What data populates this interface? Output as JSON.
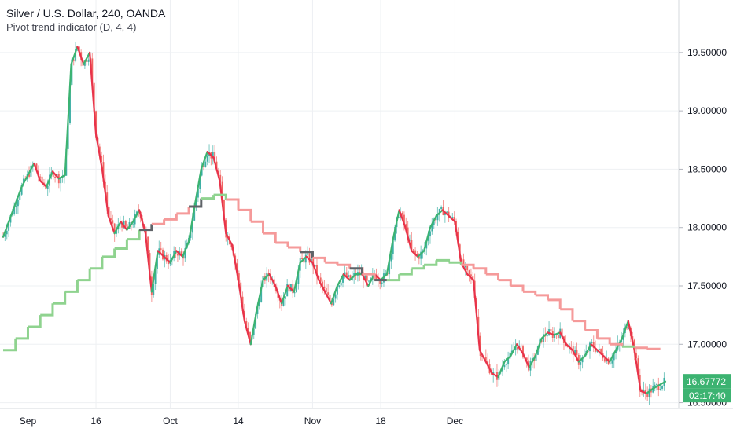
{
  "legend": {
    "title": "Silver / U.S. Dollar, 240, OANDA",
    "indicator": "Pivot trend indicator (D, 4, 4)"
  },
  "colors": {
    "up": "#26a69a",
    "down": "#ef5350",
    "trend_up": "#3cb371",
    "trend_down": "#e8334a",
    "pivot_bull": "#8fd38f",
    "pivot_bear": "#f59a9a",
    "pivot_neutral": "#5f6368",
    "tag": "#3cb371",
    "grid": "#eef0f3"
  },
  "chart_data": {
    "type": "line",
    "series": [
      {
        "role": "price",
        "points": [
          [
            0,
            17.92
          ],
          [
            3,
            18.35
          ],
          [
            5,
            18.55
          ],
          [
            6,
            18.4
          ],
          [
            7,
            18.35
          ],
          [
            8,
            18.48
          ],
          [
            9,
            18.42
          ],
          [
            10,
            18.45
          ],
          [
            11,
            19.4
          ],
          [
            12,
            19.55
          ],
          [
            13,
            19.4
          ],
          [
            14,
            19.5
          ],
          [
            15,
            18.8
          ],
          [
            16,
            18.5
          ],
          [
            17,
            18.1
          ],
          [
            18,
            17.95
          ],
          [
            19,
            18.05
          ],
          [
            20,
            17.98
          ],
          [
            21,
            18.05
          ],
          [
            22,
            18.15
          ],
          [
            23,
            17.95
          ],
          [
            24,
            17.45
          ],
          [
            25,
            17.8
          ],
          [
            26,
            17.75
          ],
          [
            27,
            17.7
          ],
          [
            28,
            17.8
          ],
          [
            29,
            17.75
          ],
          [
            30,
            17.88
          ],
          [
            31,
            18.2
          ],
          [
            32,
            18.5
          ],
          [
            33,
            18.65
          ],
          [
            34,
            18.6
          ],
          [
            35,
            18.4
          ],
          [
            36,
            17.95
          ],
          [
            37,
            17.85
          ],
          [
            38,
            17.55
          ],
          [
            39,
            17.2
          ],
          [
            40,
            17.0
          ],
          [
            41,
            17.3
          ],
          [
            42,
            17.55
          ],
          [
            43,
            17.6
          ],
          [
            44,
            17.5
          ],
          [
            45,
            17.35
          ],
          [
            46,
            17.5
          ],
          [
            47,
            17.45
          ],
          [
            48,
            17.7
          ],
          [
            49,
            17.75
          ],
          [
            50,
            17.7
          ],
          [
            51,
            17.55
          ],
          [
            52,
            17.45
          ],
          [
            53,
            17.35
          ],
          [
            54,
            17.5
          ],
          [
            55,
            17.6
          ],
          [
            56,
            17.55
          ],
          [
            57,
            17.6
          ],
          [
            58,
            17.6
          ],
          [
            59,
            17.5
          ],
          [
            60,
            17.6
          ],
          [
            61,
            17.55
          ],
          [
            62,
            17.6
          ],
          [
            63,
            17.9
          ],
          [
            64,
            18.15
          ],
          [
            65,
            18.0
          ],
          [
            66,
            17.8
          ],
          [
            67,
            17.75
          ],
          [
            68,
            17.8
          ],
          [
            69,
            18.0
          ],
          [
            70,
            18.1
          ],
          [
            71,
            18.15
          ],
          [
            72,
            18.1
          ],
          [
            73,
            18.05
          ],
          [
            74,
            17.7
          ],
          [
            75,
            17.6
          ],
          [
            76,
            17.55
          ],
          [
            77,
            16.95
          ],
          [
            78,
            16.85
          ],
          [
            79,
            16.75
          ],
          [
            80,
            16.72
          ],
          [
            81,
            16.85
          ],
          [
            82,
            16.9
          ],
          [
            83,
            17.0
          ],
          [
            84,
            16.92
          ],
          [
            85,
            16.8
          ],
          [
            86,
            16.9
          ],
          [
            87,
            17.05
          ],
          [
            88,
            17.1
          ],
          [
            89,
            17.08
          ],
          [
            90,
            17.1
          ],
          [
            91,
            17.0
          ],
          [
            92,
            16.95
          ],
          [
            93,
            16.85
          ],
          [
            94,
            16.9
          ],
          [
            95,
            17.0
          ],
          [
            96,
            16.95
          ],
          [
            97,
            16.9
          ],
          [
            98,
            16.85
          ],
          [
            99,
            16.95
          ],
          [
            100,
            17.05
          ],
          [
            101,
            17.2
          ],
          [
            102,
            16.95
          ],
          [
            103,
            16.6
          ],
          [
            104,
            16.58
          ],
          [
            105,
            16.62
          ],
          [
            106,
            16.65
          ],
          [
            107,
            16.68
          ]
        ]
      },
      {
        "role": "pivot-trend",
        "points": [
          [
            0,
            16.95
          ],
          [
            2,
            17.05
          ],
          [
            4,
            17.15
          ],
          [
            6,
            17.25
          ],
          [
            8,
            17.35
          ],
          [
            10,
            17.45
          ],
          [
            12,
            17.55
          ],
          [
            14,
            17.65
          ],
          [
            16,
            17.75
          ],
          [
            18,
            17.82
          ],
          [
            20,
            17.9
          ],
          [
            22,
            17.98
          ],
          [
            24,
            18.03
          ],
          [
            26,
            18.07
          ],
          [
            28,
            18.12
          ],
          [
            30,
            18.18
          ],
          [
            32,
            18.25
          ],
          [
            34,
            18.28
          ],
          [
            36,
            18.24
          ],
          [
            38,
            18.15
          ],
          [
            40,
            18.05
          ],
          [
            42,
            17.95
          ],
          [
            44,
            17.87
          ],
          [
            46,
            17.83
          ],
          [
            48,
            17.79
          ],
          [
            50,
            17.74
          ],
          [
            52,
            17.7
          ],
          [
            54,
            17.68
          ],
          [
            56,
            17.65
          ],
          [
            58,
            17.6
          ],
          [
            60,
            17.55
          ],
          [
            62,
            17.55
          ],
          [
            64,
            17.6
          ],
          [
            66,
            17.65
          ],
          [
            68,
            17.68
          ],
          [
            70,
            17.72
          ],
          [
            72,
            17.7
          ],
          [
            74,
            17.68
          ],
          [
            76,
            17.65
          ],
          [
            78,
            17.6
          ],
          [
            80,
            17.55
          ],
          [
            82,
            17.5
          ],
          [
            84,
            17.45
          ],
          [
            86,
            17.42
          ],
          [
            88,
            17.38
          ],
          [
            90,
            17.3
          ],
          [
            92,
            17.2
          ],
          [
            94,
            17.12
          ],
          [
            96,
            17.05
          ],
          [
            98,
            17.0
          ],
          [
            100,
            16.98
          ],
          [
            102,
            16.97
          ],
          [
            104,
            16.96
          ],
          [
            106,
            16.95
          ]
        ]
      }
    ],
    "ylim": [
      16.45,
      19.95
    ],
    "yticks": [
      "19.50000",
      "19.00000",
      "18.50000",
      "18.00000",
      "17.50000",
      "17.00000",
      "16.50000"
    ],
    "xticks": [
      "Sep",
      "16",
      "Oct",
      "14",
      "Nov",
      "18",
      "Dec"
    ],
    "last_price": "16.67772",
    "countdown": "02:17:40",
    "grid": true
  }
}
